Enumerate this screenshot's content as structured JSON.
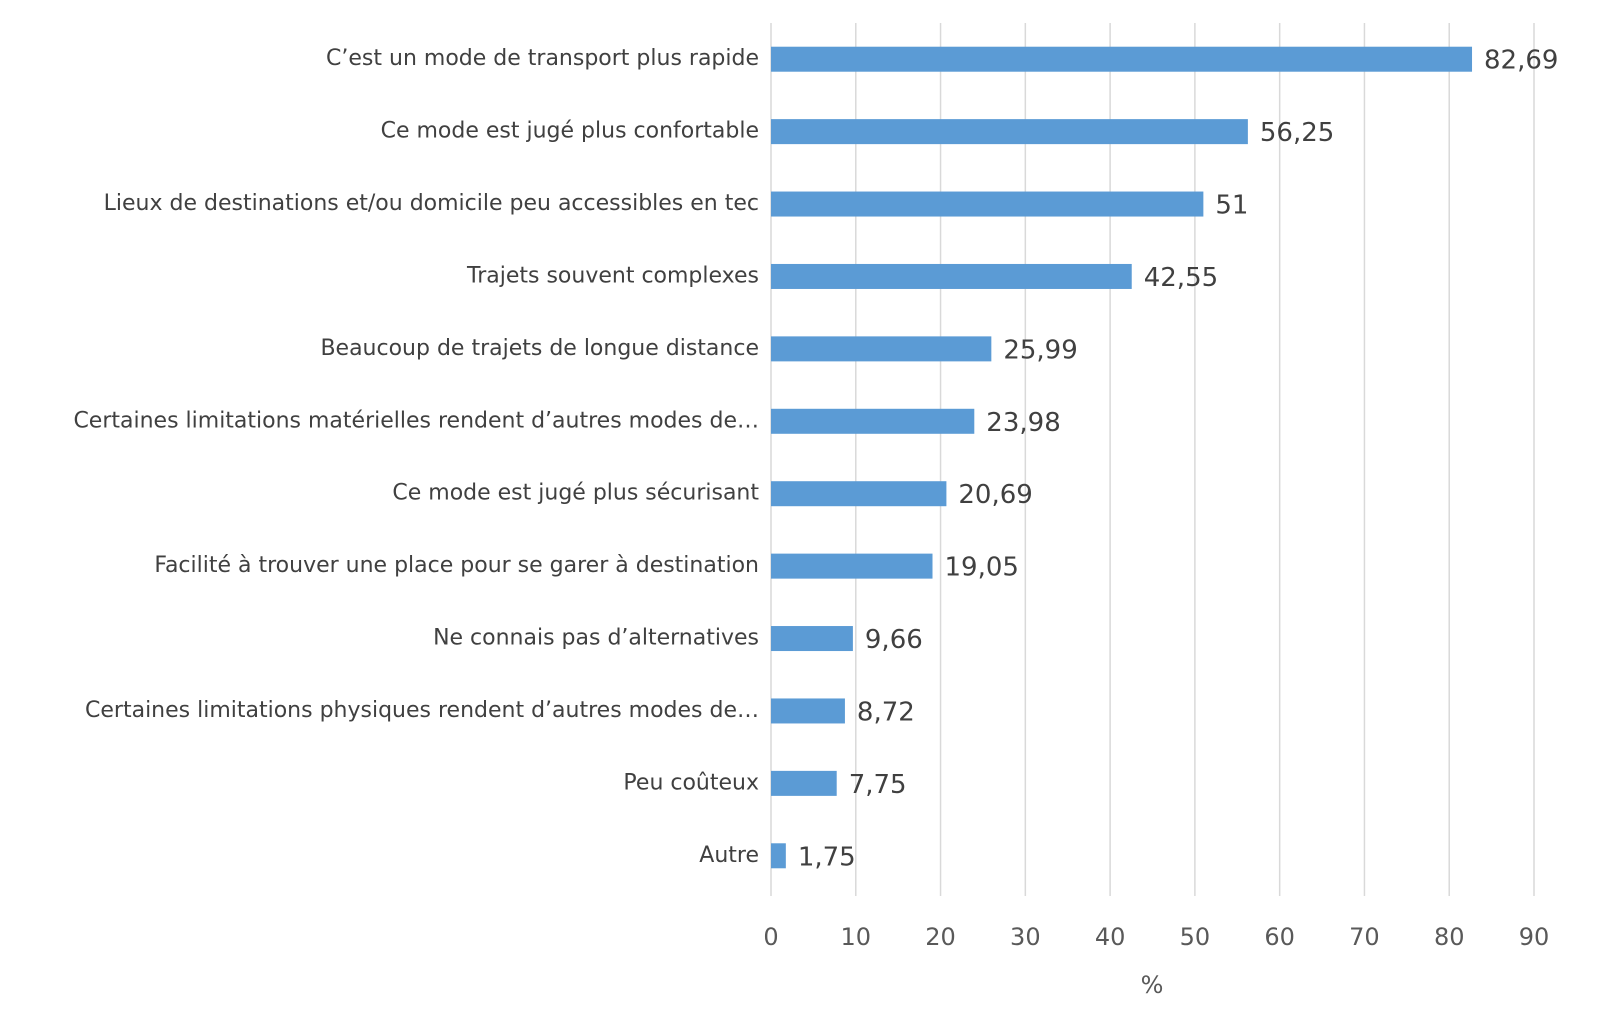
{
  "chart_data": {
    "type": "bar",
    "orientation": "horizontal",
    "x_label": "%",
    "categories": [
      "C’est un mode de transport plus rapide",
      "Ce mode est jugé plus confortable",
      "Lieux de destinations et/ou domicile peu accessibles en tec",
      "Trajets souvent complexes",
      "Beaucoup de trajets de longue distance",
      "Certaines limitations matérielles rendent d’autres modes de…",
      "Ce mode est jugé plus sécurisant",
      "Facilité à trouver une place pour se garer à destination",
      "Ne connais pas d’alternatives",
      "Certaines limitations physiques rendent d’autres modes de…",
      "Peu coûteux",
      "Autre"
    ],
    "values": [
      82.69,
      56.25,
      51,
      42.55,
      25.99,
      23.98,
      20.69,
      19.05,
      9.66,
      8.72,
      7.75,
      1.75
    ],
    "value_labels": [
      "82,69",
      "56,25",
      "51",
      "42,55",
      "25,99",
      "23,98",
      "20,69",
      "19,05",
      "9,66",
      "8,72",
      "7,75",
      "1,75"
    ],
    "color": "#5b9bd5",
    "xlim": [
      0,
      90
    ],
    "xticks": [
      0,
      10,
      20,
      30,
      40,
      50,
      60,
      70,
      80,
      90
    ],
    "grid": true
  }
}
